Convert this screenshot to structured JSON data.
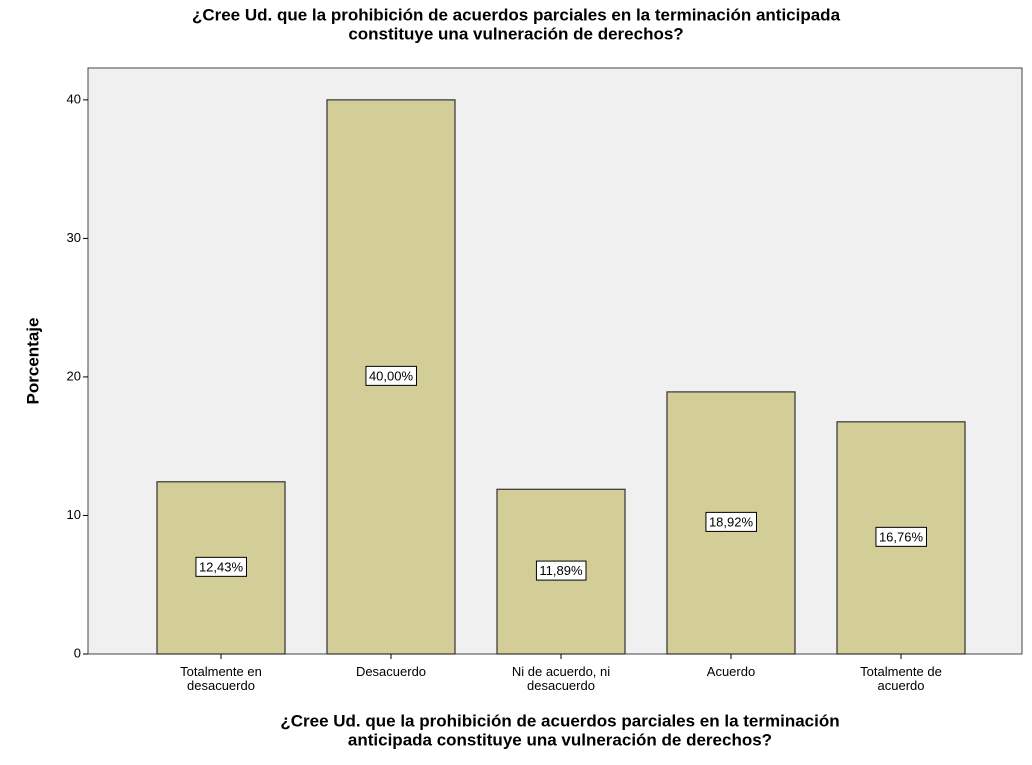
{
  "chart_data": {
    "type": "bar",
    "title": [
      "¿Cree Ud. que la prohibición de acuerdos parciales en la terminación anticipada",
      "constituye una vulneración de derechos?"
    ],
    "x_label": [
      "¿Cree Ud. que la prohibición de acuerdos parciales en la terminación",
      "anticipada constituye una vulneración de derechos?"
    ],
    "y_label": "Porcentaje",
    "categories": [
      "Totalmente en desacuerdo",
      "Desacuerdo",
      "Ni de acuerdo, ni desacuerdo",
      "Acuerdo",
      "Totalmente de acuerdo"
    ],
    "values": [
      12.43,
      40.0,
      11.89,
      18.92,
      16.76
    ],
    "value_labels": [
      "12,43%",
      "40,00%",
      "11,89%",
      "18,92%",
      "16,76%"
    ],
    "color": "#d3ce97",
    "ylim": [
      0,
      42.3
    ],
    "yticks": [
      0,
      10,
      20,
      30,
      40
    ],
    "grid": false
  }
}
